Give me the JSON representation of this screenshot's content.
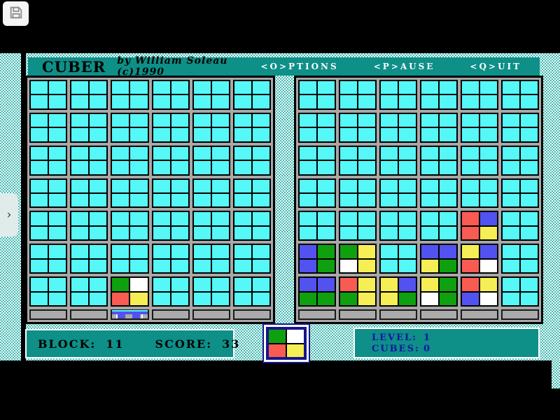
{
  "window": {
    "save_button_icon": "floppy-disk-icon",
    "side_tab_chevron": "›"
  },
  "title_bar": {
    "title": "CUBER",
    "byline": "by William Soleau  (c)1990",
    "menu": [
      {
        "label": "<O>PTIONS"
      },
      {
        "label": "<P>AUSE"
      },
      {
        "label": "<Q>UIT"
      }
    ]
  },
  "status": {
    "block_label": "BLOCK:",
    "block_value": "11",
    "score_label": "SCORE:",
    "score_value": "33",
    "level_label": "LEVEL:",
    "level_value": "1",
    "cubes_label": "CUBES:",
    "cubes_value": "0"
  },
  "preview": {
    "cells": [
      "G",
      "W",
      "R",
      "Y"
    ]
  },
  "grids": {
    "left": {
      "paddle_block_col": 3,
      "rows": [
        "............",
        "............",
        "............",
        "............",
        "............",
        "............",
        "............",
        "............",
        "............",
        "............",
        "............",
        "............",
        "....GW......",
        "....RY......"
      ]
    },
    "right": {
      "paddle_block_col": null,
      "rows": [
        "............",
        "............",
        "............",
        "............",
        "............",
        "............",
        "............",
        "............",
        "........RB..",
        "........RY..",
        "BGGY..BBYB..",
        "BGWY..YGRW..",
        "BBRYYBYGRY..",
        "GGGYYGWGBW.."
      ]
    }
  },
  "colors": {
    "teal_bar": "#0E8F88",
    "navy_text": "#1414A8",
    "grid_gray": "#A8A8A8",
    "dither_teal": "#45BCB4",
    "paddle_blue": "#5252F0",
    "cell_map": {
      ".": "#55F7F7",
      "G": "#0FA00F",
      "W": "#FFFFFF",
      "R": "#F85B52",
      "B": "#5252F0",
      "Y": "#F6EE55"
    }
  }
}
